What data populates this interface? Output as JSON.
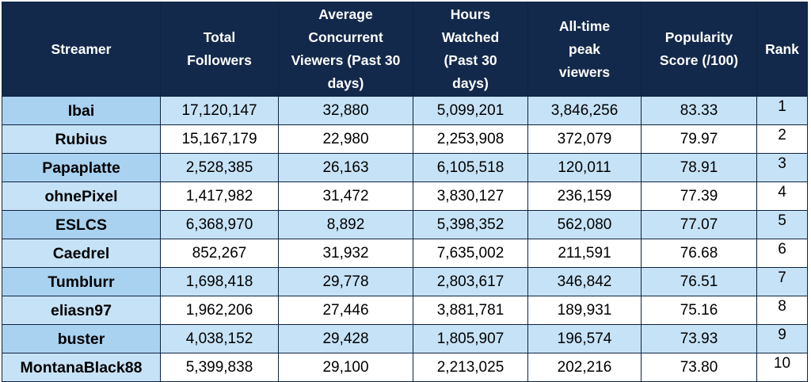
{
  "headers": [
    "Streamer",
    "Total Followers",
    "Average Concurrent Viewers (Past 30 days)",
    "Hours Watched (Past 30 days)",
    "All-time peak viewers",
    "Popularity Score (/100)",
    "Rank"
  ],
  "rows": [
    [
      "Ibai",
      "17,120,147",
      "32,880",
      "5,099,201",
      "3,846,256",
      "83.33",
      "1"
    ],
    [
      "Rubius",
      "15,167,179",
      "22,980",
      "2,253,908",
      "372,079",
      "79.97",
      "2"
    ],
    [
      "Papaplatte",
      "2,528,385",
      "26,163",
      "6,105,518",
      "120,011",
      "78.91",
      "3"
    ],
    [
      "ohnePixel",
      "1,417,982",
      "31,472",
      "3,830,127",
      "236,159",
      "77.39",
      "4"
    ],
    [
      "ESLCS",
      "6,368,970",
      "8,892",
      "5,398,352",
      "562,080",
      "77.07",
      "5"
    ],
    [
      "Caedrel",
      "852,267",
      "31,932",
      "7,635,002",
      "211,591",
      "76.68",
      "6"
    ],
    [
      "Tumblurr",
      "1,698,418",
      "29,778",
      "2,803,617",
      "346,842",
      "76.51",
      "7"
    ],
    [
      "eliasn97",
      "1,962,206",
      "27,446",
      "3,881,781",
      "189,931",
      "75.16",
      "8"
    ],
    [
      "buster",
      "4,038,152",
      "29,428",
      "1,805,907",
      "196,574",
      "73.93",
      "9"
    ],
    [
      "MontanaBlack88",
      "5,399,838",
      "29,100",
      "2,213,025",
      "202,216",
      "73.80",
      "10"
    ]
  ]
}
